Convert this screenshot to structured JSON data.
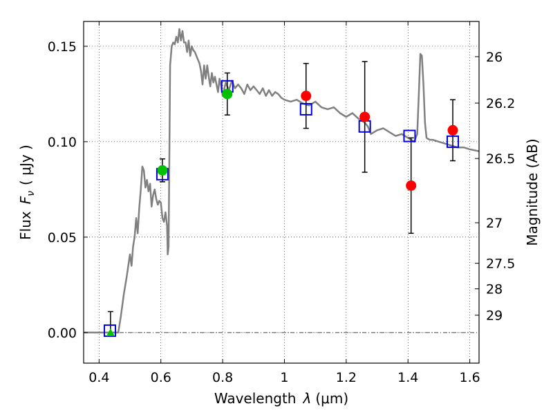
{
  "chart_data": {
    "type": "scatter",
    "xlabel": "Wavelength  λ (μm)",
    "ylabel": "Flux  F_ν  ( μJy )",
    "ylabel_parts": {
      "text": "Flux",
      "symbol": "F",
      "subscript": "ν",
      "unit": "( μJy )"
    },
    "xlabel_parts": {
      "text": "Wavelength",
      "symbol": "λ",
      "unit": "(μm)"
    },
    "right_ylabel": "Magnitude (AB)",
    "xlim": [
      0.35,
      1.63
    ],
    "ylim": [
      -0.016,
      0.163
    ],
    "grid": true,
    "x_ticks": [
      {
        "value": 0.4,
        "label": "0.4"
      },
      {
        "value": 0.6,
        "label": "0.6"
      },
      {
        "value": 0.8,
        "label": "0.8"
      },
      {
        "value": 1.0,
        "label": "1"
      },
      {
        "value": 1.2,
        "label": "1.2"
      },
      {
        "value": 1.4,
        "label": "1.4"
      },
      {
        "value": 1.6,
        "label": "1.6"
      }
    ],
    "y_ticks": [
      {
        "value": 0.0,
        "label": "0.00"
      },
      {
        "value": 0.05,
        "label": "0.05"
      },
      {
        "value": 0.1,
        "label": "0.10"
      },
      {
        "value": 0.15,
        "label": "0.15"
      }
    ],
    "right_ticks": [
      {
        "value": 26,
        "label": "26"
      },
      {
        "value": 26.2,
        "label": "26.2"
      },
      {
        "value": 26.5,
        "label": "26.5"
      },
      {
        "value": 27,
        "label": "27"
      },
      {
        "value": 27.5,
        "label": "27.5"
      },
      {
        "value": 28,
        "label": "28"
      },
      {
        "value": 29,
        "label": "29"
      }
    ],
    "model_spectrum": {
      "color": "#808080",
      "x": [
        0.35,
        0.45,
        0.462,
        0.47,
        0.48,
        0.49,
        0.5,
        0.505,
        0.51,
        0.515,
        0.52,
        0.525,
        0.53,
        0.535,
        0.54,
        0.545,
        0.55,
        0.555,
        0.56,
        0.565,
        0.57,
        0.575,
        0.58,
        0.585,
        0.59,
        0.595,
        0.6,
        0.605,
        0.61,
        0.615,
        0.62,
        0.622,
        0.625,
        0.63,
        0.635,
        0.64,
        0.645,
        0.65,
        0.655,
        0.66,
        0.665,
        0.67,
        0.675,
        0.68,
        0.685,
        0.69,
        0.695,
        0.7,
        0.705,
        0.71,
        0.715,
        0.72,
        0.725,
        0.73,
        0.735,
        0.74,
        0.745,
        0.75,
        0.755,
        0.76,
        0.765,
        0.77,
        0.775,
        0.78,
        0.785,
        0.79,
        0.795,
        0.8,
        0.81,
        0.82,
        0.83,
        0.84,
        0.85,
        0.86,
        0.87,
        0.88,
        0.89,
        0.9,
        0.91,
        0.92,
        0.93,
        0.94,
        0.95,
        0.96,
        0.97,
        0.98,
        0.99,
        1.0,
        1.02,
        1.04,
        1.06,
        1.08,
        1.1,
        1.12,
        1.14,
        1.16,
        1.18,
        1.2,
        1.22,
        1.24,
        1.26,
        1.27,
        1.28,
        1.3,
        1.32,
        1.34,
        1.36,
        1.38,
        1.4,
        1.42,
        1.43,
        1.435,
        1.44,
        1.445,
        1.45,
        1.455,
        1.46,
        1.47,
        1.48,
        1.5,
        1.52,
        1.54,
        1.56,
        1.58,
        1.6,
        1.63
      ],
      "y": [
        0.0,
        0.0,
        0.0,
        0.008,
        0.02,
        0.03,
        0.041,
        0.035,
        0.045,
        0.05,
        0.06,
        0.052,
        0.065,
        0.075,
        0.087,
        0.085,
        0.076,
        0.08,
        0.074,
        0.078,
        0.066,
        0.072,
        0.075,
        0.07,
        0.067,
        0.069,
        0.068,
        0.06,
        0.058,
        0.063,
        0.056,
        0.041,
        0.045,
        0.14,
        0.15,
        0.152,
        0.151,
        0.155,
        0.152,
        0.159,
        0.153,
        0.158,
        0.152,
        0.152,
        0.147,
        0.153,
        0.145,
        0.15,
        0.148,
        0.147,
        0.145,
        0.143,
        0.141,
        0.137,
        0.13,
        0.14,
        0.133,
        0.14,
        0.134,
        0.129,
        0.136,
        0.131,
        0.134,
        0.13,
        0.126,
        0.133,
        0.129,
        0.124,
        0.131,
        0.127,
        0.132,
        0.128,
        0.13,
        0.128,
        0.125,
        0.13,
        0.127,
        0.129,
        0.127,
        0.125,
        0.128,
        0.124,
        0.127,
        0.124,
        0.126,
        0.125,
        0.123,
        0.122,
        0.121,
        0.122,
        0.12,
        0.119,
        0.121,
        0.118,
        0.117,
        0.118,
        0.115,
        0.113,
        0.115,
        0.112,
        0.11,
        0.108,
        0.104,
        0.106,
        0.107,
        0.105,
        0.103,
        0.104,
        0.102,
        0.1,
        0.104,
        0.125,
        0.146,
        0.145,
        0.13,
        0.11,
        0.102,
        0.101,
        0.101,
        0.1,
        0.099,
        0.098,
        0.097,
        0.097,
        0.096,
        0.095
      ]
    },
    "model_photometry": {
      "color": "#0000dd",
      "marker": "square",
      "x": [
        0.435,
        0.605,
        0.815,
        1.07,
        1.26,
        1.405,
        1.545
      ],
      "y": [
        0.001,
        0.083,
        0.129,
        0.117,
        0.108,
        0.103,
        0.1
      ]
    },
    "detections": {
      "color": "#ff0000",
      "marker": "circle",
      "points": [
        {
          "x": 1.07,
          "y": 0.124,
          "err_lo": 0.017,
          "err_hi": 0.017
        },
        {
          "x": 1.26,
          "y": 0.113,
          "err_lo": 0.029,
          "err_hi": 0.029
        },
        {
          "x": 1.41,
          "y": 0.077,
          "err_lo": 0.025,
          "err_hi": 0.025
        },
        {
          "x": 1.545,
          "y": 0.106,
          "err_lo": 0.016,
          "err_hi": 0.016
        }
      ]
    },
    "optical_detections": {
      "color": "#00c000",
      "marker": "circle",
      "points": [
        {
          "x": 0.605,
          "y": 0.085,
          "err_lo": 0.006,
          "err_hi": 0.006
        },
        {
          "x": 0.815,
          "y": 0.125,
          "err_lo": 0.011,
          "err_hi": 0.011
        }
      ]
    },
    "upper_limit": {
      "color": "#00c000",
      "marker": "triangle",
      "x": 0.437,
      "y": 0.0,
      "err_hi": 0.011
    }
  }
}
